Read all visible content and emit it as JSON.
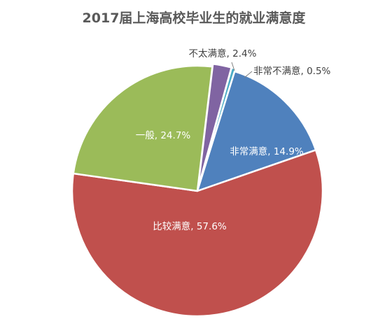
{
  "chart_data": {
    "type": "pie",
    "title": "2017届上海高校毕业生的就业满意度",
    "categories": [
      "非常满意",
      "比较满意",
      "一般",
      "不太满意",
      "非常不满意"
    ],
    "values": [
      14.9,
      57.6,
      24.7,
      2.4,
      0.5
    ],
    "data_labels": [
      "非常满意, 14.9%",
      "比较满意, 57.6%",
      "一般, 24.7%",
      "不太满意, 2.4%",
      "非常不满意, 0.5%"
    ],
    "colors": [
      "#4f81bd",
      "#c0504d",
      "#9bbb59",
      "#8064a2",
      "#4bacc6"
    ],
    "legend": "none"
  }
}
